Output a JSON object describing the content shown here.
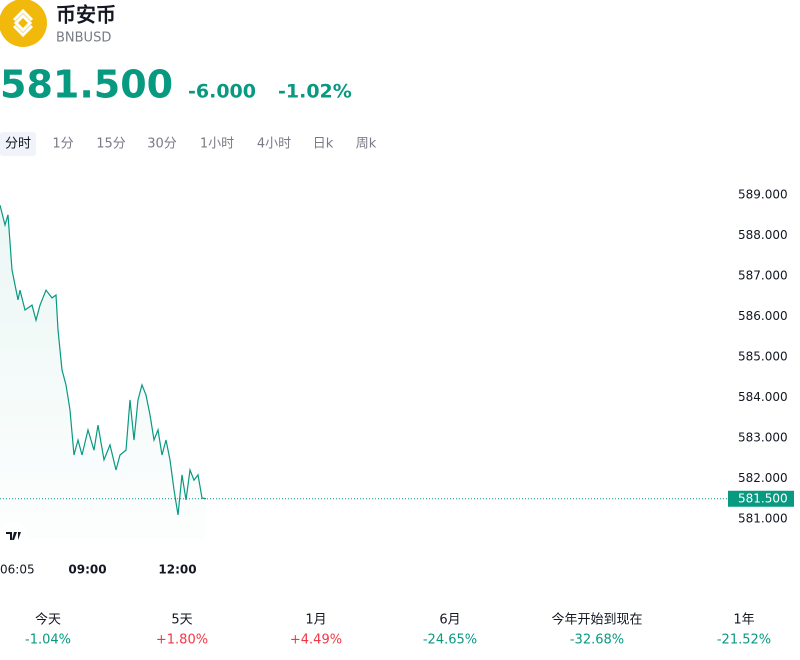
{
  "header": {
    "name": "币安币",
    "symbol": "BNBUSD"
  },
  "quote": {
    "price": "581.500",
    "change": "-6.000",
    "change_pct": "-1.02%",
    "color": "#089981"
  },
  "intervals": [
    "分时",
    "1分",
    "15分",
    "30分",
    "1小时",
    "4小时",
    "日k",
    "周k"
  ],
  "active_interval": 0,
  "chart_data": {
    "type": "line",
    "color": "#089981",
    "x": [
      "06:05",
      "06:15",
      "06:21",
      "06:29",
      "06:41",
      "06:45",
      "06:55",
      "07:09",
      "07:17",
      "07:25",
      "07:37",
      "07:49",
      "07:57",
      "08:01",
      "08:09",
      "08:17",
      "08:25",
      "08:33",
      "08:41",
      "08:49",
      "09:01",
      "09:13",
      "09:21",
      "09:33",
      "09:45",
      "09:57",
      "10:05",
      "10:17",
      "10:25",
      "10:33",
      "10:41",
      "10:49",
      "10:57",
      "11:05",
      "11:13",
      "11:21",
      "11:29",
      "11:37",
      "11:45",
      "11:53",
      "12:01",
      "12:09",
      "12:17",
      "12:25",
      "12:33",
      "12:41",
      "12:49",
      "12:57"
    ],
    "values": [
      588.75,
      588.26,
      588.51,
      587.15,
      586.41,
      586.65,
      586.16,
      586.28,
      585.91,
      586.28,
      586.65,
      586.46,
      586.53,
      585.67,
      584.68,
      584.31,
      583.69,
      582.58,
      582.95,
      582.58,
      583.2,
      582.7,
      583.32,
      582.46,
      582.83,
      582.21,
      582.58,
      582.7,
      583.94,
      582.95,
      583.94,
      584.31,
      584.06,
      583.57,
      582.95,
      583.2,
      582.58,
      582.95,
      582.46,
      581.72,
      581.1,
      582.09,
      581.47,
      582.21,
      581.96,
      582.09,
      581.52,
      581.5
    ],
    "ylim": [
      580.5,
      589.6
    ],
    "yticks": [
      {
        "value": 581,
        "label": "581.000"
      },
      {
        "value": 582,
        "label": "582.000"
      },
      {
        "value": 583,
        "label": "583.000"
      },
      {
        "value": 584,
        "label": "584.000"
      },
      {
        "value": 585,
        "label": "585.000"
      },
      {
        "value": 586,
        "label": "586.000"
      },
      {
        "value": 587,
        "label": "587.000"
      },
      {
        "value": 588,
        "label": "588.000"
      },
      {
        "value": 589,
        "label": "589.000"
      }
    ],
    "xticks": [
      "06:05",
      "09:00",
      "12:00"
    ],
    "last_price": {
      "value": 581.5,
      "label": "581.500"
    }
  },
  "periods": [
    {
      "label": "今天",
      "change": "-1.04%"
    },
    {
      "label": "5天",
      "change": "+1.80%"
    },
    {
      "label": "1月",
      "change": "+4.49%"
    },
    {
      "label": "6月",
      "change": "-24.65%"
    },
    {
      "label": "今年开始到现在",
      "change": "-32.68%"
    },
    {
      "label": "1年",
      "change": "-21.52%"
    }
  ],
  "up_color": "#f23645",
  "down_color": "#089981"
}
